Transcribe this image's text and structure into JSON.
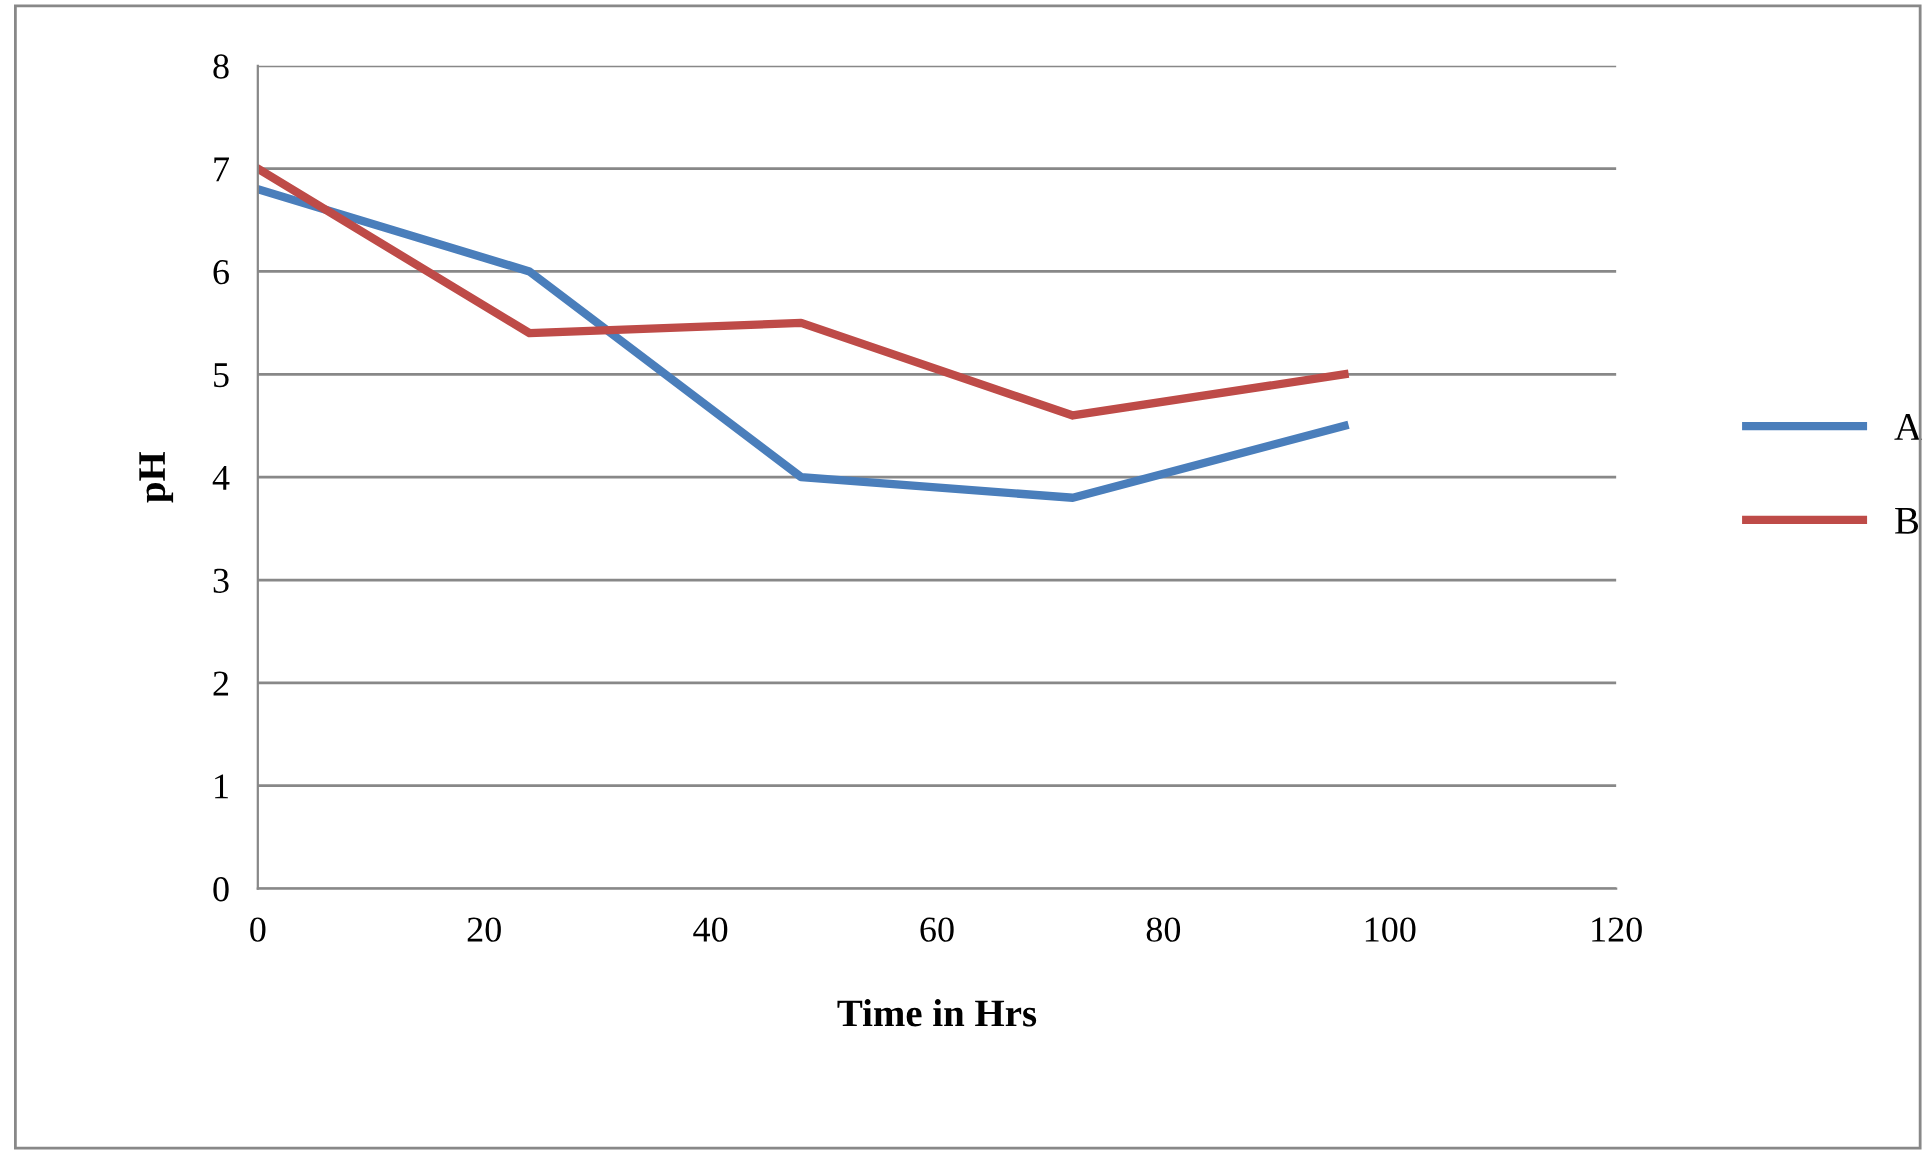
{
  "chart_data": {
    "type": "line",
    "xlabel": "Time in Hrs",
    "ylabel": "pH",
    "x": [
      0,
      24,
      48,
      72,
      96
    ],
    "series": [
      {
        "name": "A",
        "color": "#4a7ebb",
        "values": [
          6.8,
          6.0,
          4.0,
          3.8,
          4.5
        ]
      },
      {
        "name": "B",
        "color": "#be4b48",
        "values": [
          7.0,
          5.4,
          5.5,
          4.6,
          5.0
        ]
      }
    ],
    "xlim": [
      0,
      120
    ],
    "xticks": [
      0,
      20,
      40,
      60,
      80,
      100,
      120
    ],
    "ylim": [
      0,
      8
    ],
    "yticks": [
      0,
      1,
      2,
      3,
      4,
      5,
      6,
      7,
      8
    ],
    "grid": "y",
    "legend": "right",
    "marker": "none",
    "line_style": "solid"
  }
}
